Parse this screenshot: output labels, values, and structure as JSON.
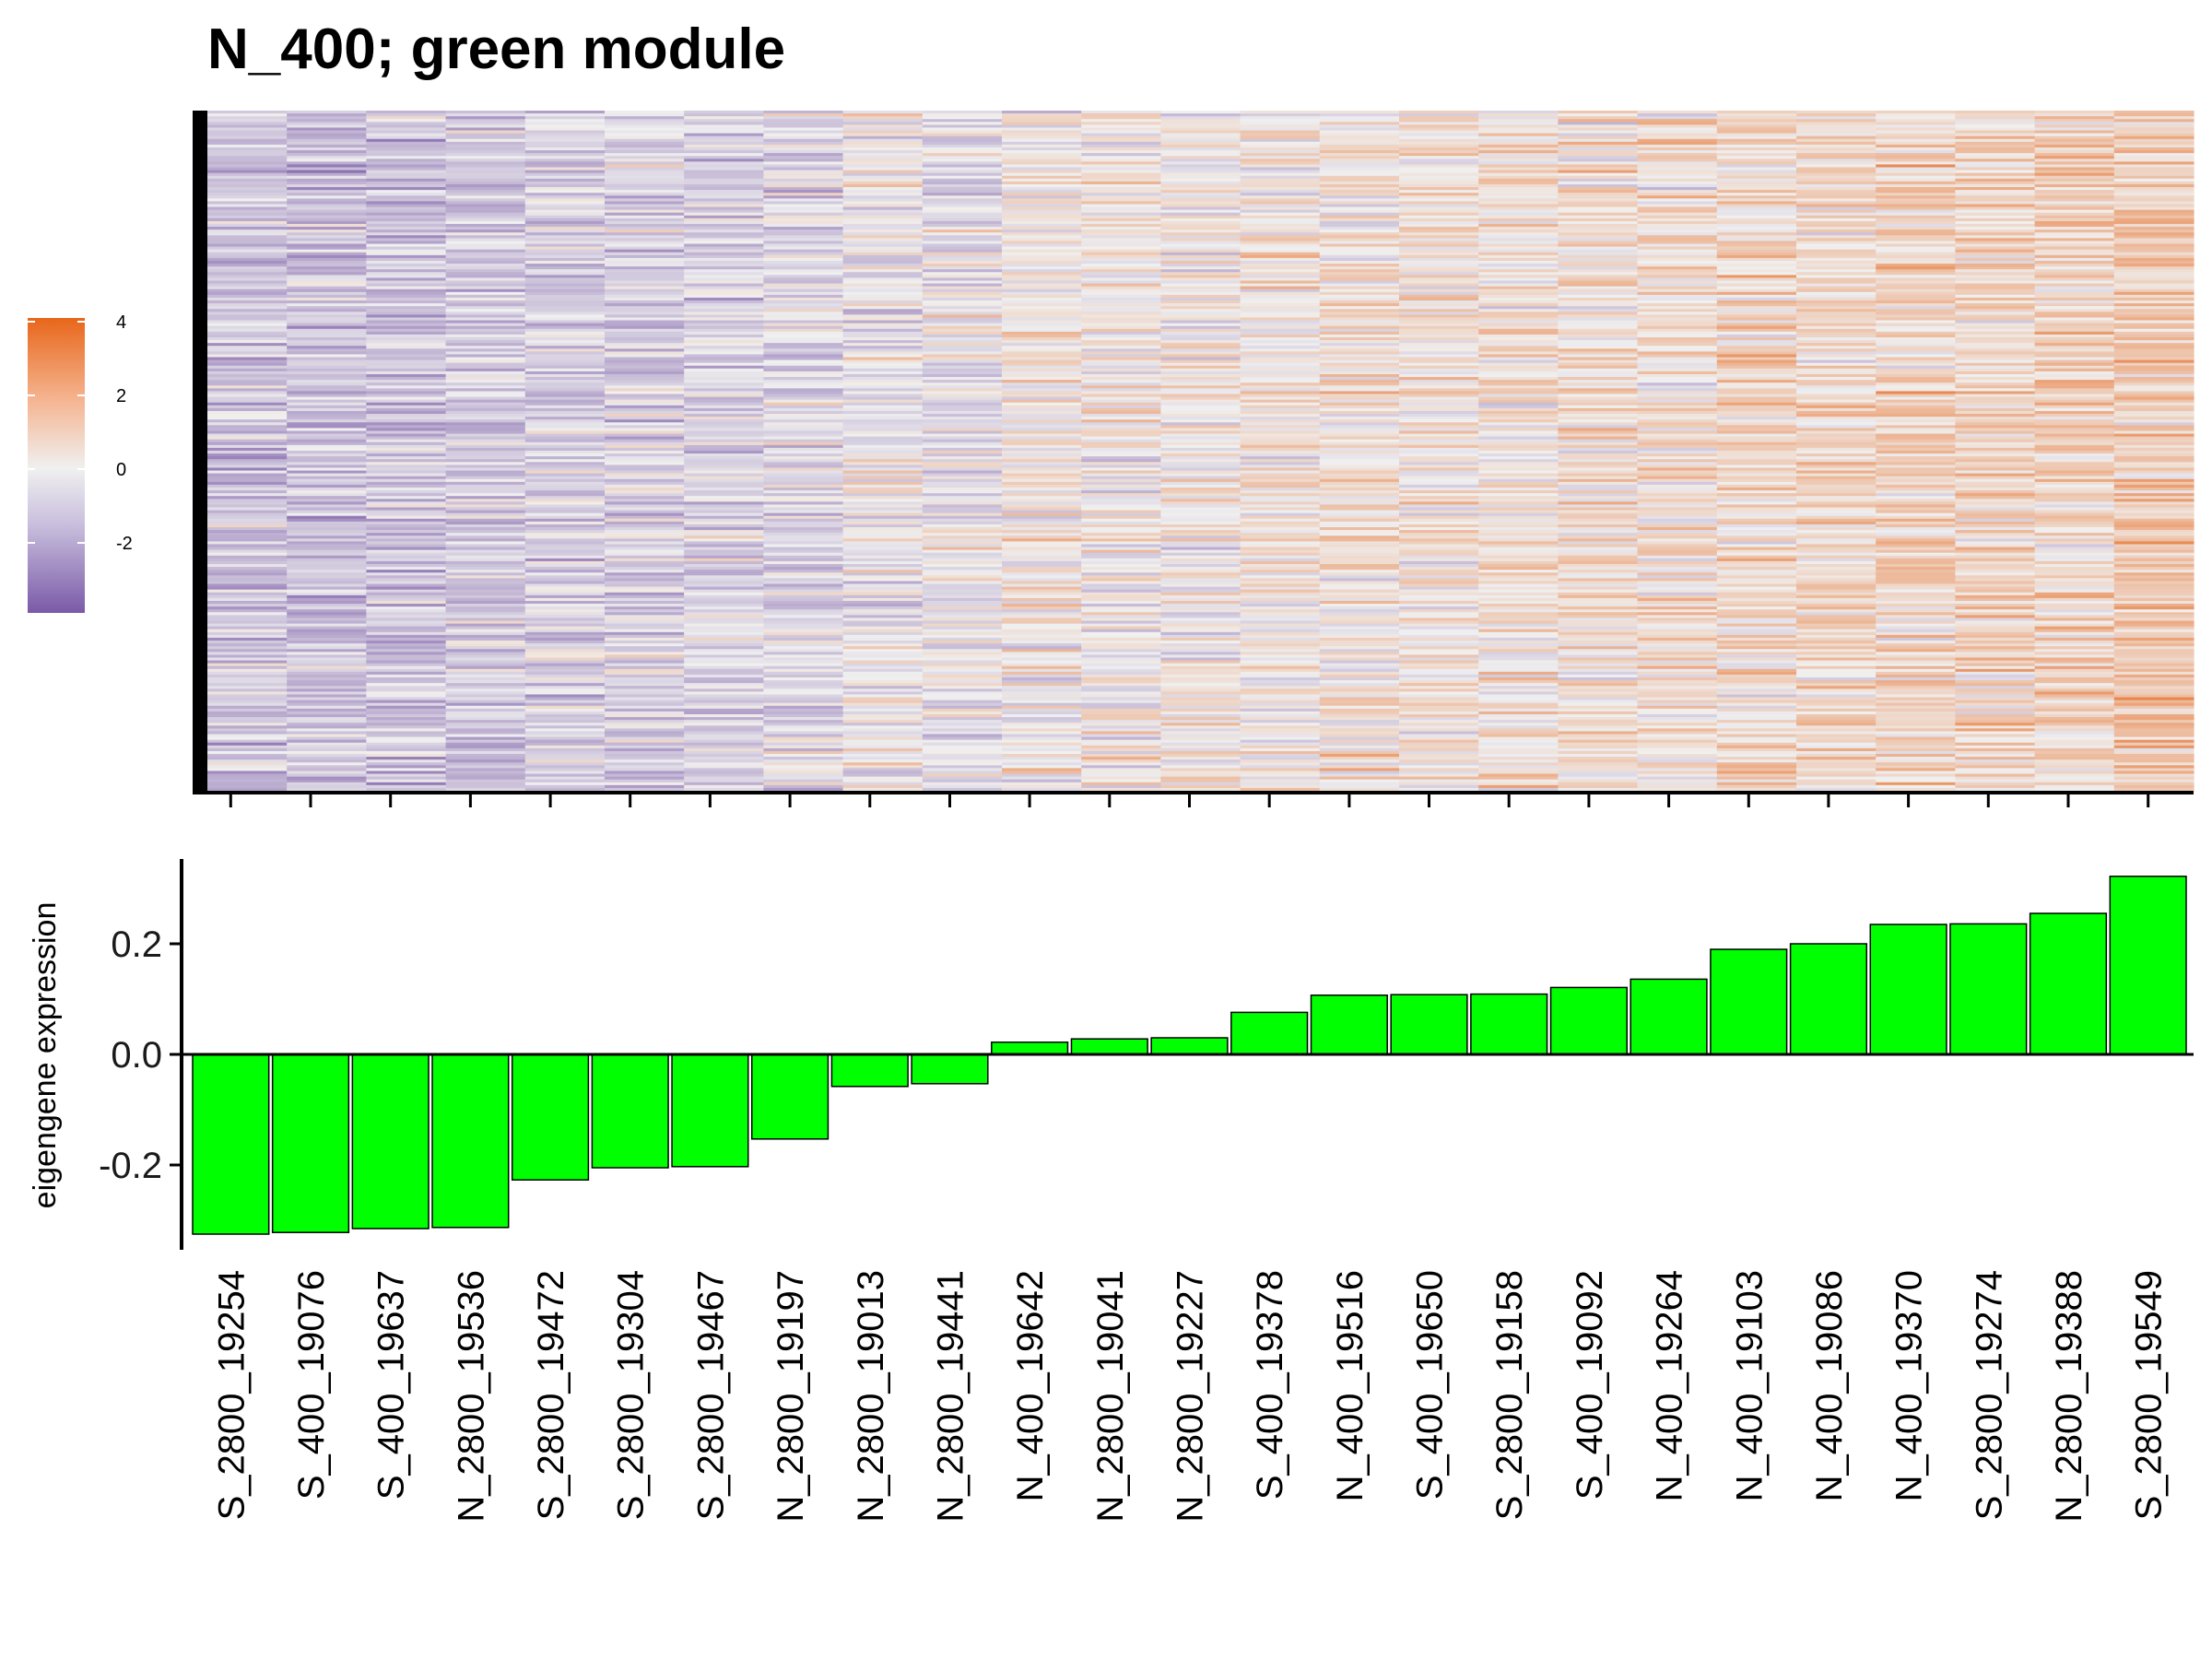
{
  "chart_data": [
    {
      "type": "heatmap",
      "title": "N_400; green module",
      "columns": [
        "S_2800_19254",
        "S_400_19076",
        "S_400_19637",
        "N_2800_19536",
        "S_2800_19472",
        "S_2800_19304",
        "S_2800_19467",
        "N_2800_19197",
        "N_2800_19013",
        "N_2800_19441",
        "N_400_19642",
        "N_2800_19041",
        "N_2800_19227",
        "S_400_19378",
        "N_400_19516",
        "S_400_19650",
        "S_2800_19158",
        "S_400_19092",
        "N_400_19264",
        "N_400_19103",
        "N_400_19086",
        "N_400_19370",
        "S_2800_19274",
        "N_2800_19388",
        "S_2800_19549"
      ],
      "color_scale": {
        "colors": [
          "#7a5aa8",
          "#f0f0f0",
          "#e8661a"
        ],
        "range": [
          -3.9,
          4.1
        ],
        "legend_ticks": [
          4,
          2,
          0,
          -2
        ]
      },
      "legend": "left"
    },
    {
      "type": "bar",
      "ylabel": "eigengene expression",
      "categories": [
        "S_2800_19254",
        "S_400_19076",
        "S_400_19637",
        "N_2800_19536",
        "S_2800_19472",
        "S_2800_19304",
        "S_2800_19467",
        "N_2800_19197",
        "N_2800_19013",
        "N_2800_19441",
        "N_400_19642",
        "N_2800_19041",
        "N_2800_19227",
        "S_400_19378",
        "N_400_19516",
        "S_400_19650",
        "S_2800_19158",
        "S_400_19092",
        "N_400_19264",
        "N_400_19103",
        "N_400_19086",
        "N_400_19370",
        "S_2800_19274",
        "N_2800_19388",
        "S_2800_19549"
      ],
      "values": [
        -0.325,
        -0.322,
        -0.315,
        -0.313,
        -0.227,
        -0.205,
        -0.203,
        -0.153,
        -0.058,
        -0.053,
        0.022,
        0.028,
        0.03,
        0.076,
        0.107,
        0.108,
        0.109,
        0.121,
        0.136,
        0.19,
        0.2,
        0.235,
        0.236,
        0.255,
        0.322
      ],
      "yticks": [
        0.2,
        0.0,
        -0.2
      ],
      "ytick_labels": [
        "0.2",
        "0.0",
        "-0.2"
      ],
      "ylim": [
        -0.36,
        0.355
      ],
      "bar_color": "#00ff00",
      "bar_edge_color": "#000000"
    }
  ]
}
